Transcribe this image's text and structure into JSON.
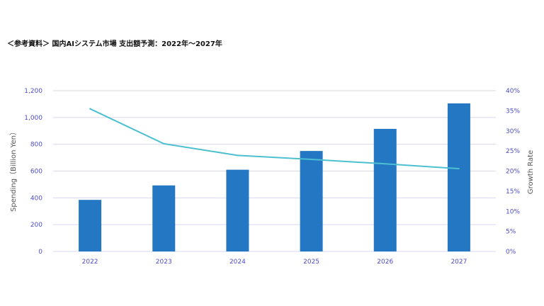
{
  "page": {
    "title": "＜参考資料＞ 国内AIシステム市場 支出額予測：2022年〜2027年"
  },
  "chart_data": {
    "type": "bar",
    "categories": [
      "2022",
      "2023",
      "2024",
      "2025",
      "2026",
      "2027"
    ],
    "series": [
      {
        "values": [
          385,
          493,
          610,
          750,
          915,
          1105
        ],
        "axis": "left",
        "type": "bar",
        "color": "#2477c2"
      },
      {
        "values": [
          35.5,
          26.8,
          23.9,
          22.9,
          21.8,
          20.6
        ],
        "axis": "right",
        "type": "line",
        "color": "#4cbfd0"
      }
    ],
    "ylabel": "Spending（Billion Yen）",
    "y2label": "Growth Rate",
    "ylim": [
      0,
      1200
    ],
    "y2lim": [
      0,
      40
    ],
    "yticks": [
      "0",
      "200",
      "400",
      "600",
      "800",
      "1,000",
      "1,200"
    ],
    "y2ticks": [
      "0%",
      "5%",
      "10%",
      "15%",
      "20%",
      "25%",
      "30%",
      "35%",
      "40%"
    ],
    "grid": true,
    "grid_color": "#d8d8f0",
    "tick_color": "#4c4cc9"
  }
}
